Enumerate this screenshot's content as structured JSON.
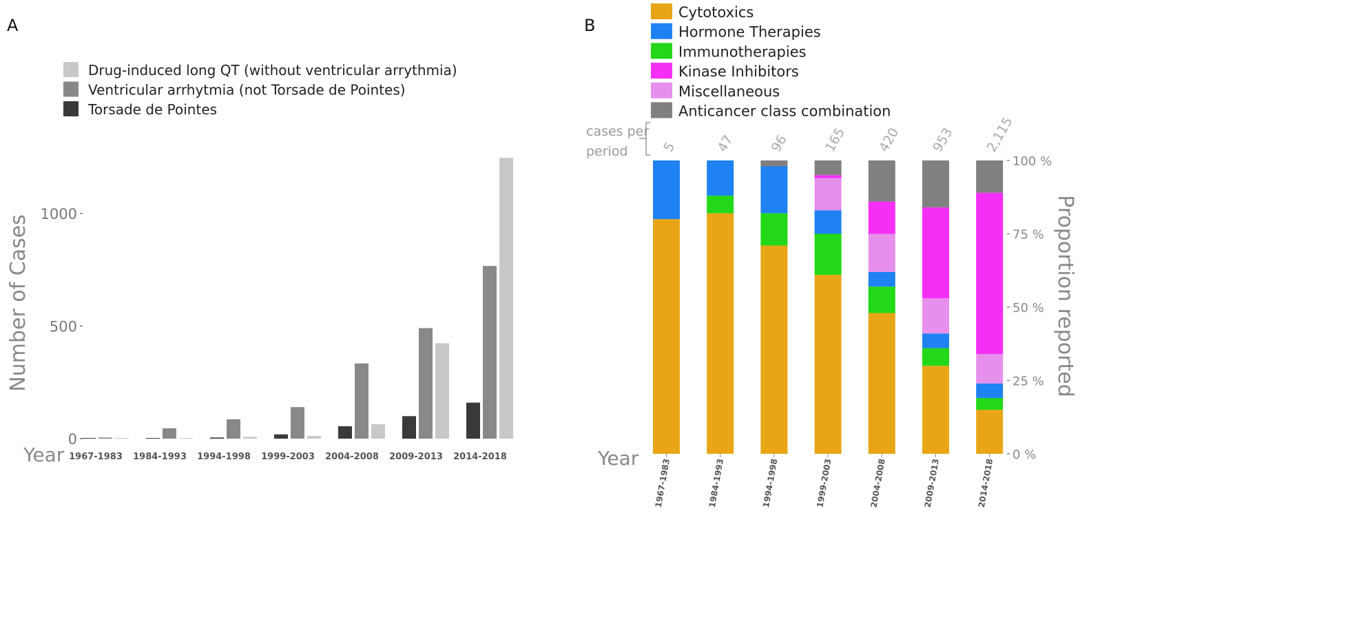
{
  "chart_data": [
    {
      "panel_label": "A",
      "type": "bar",
      "ylabel": "Number of Cases",
      "xlabel": "Year",
      "ylim": [
        0,
        1300
      ],
      "yticks": [
        0,
        500,
        1000
      ],
      "grid": false,
      "legend_placement": "top",
      "categories": [
        "1967-1983",
        "1984-1993",
        "1994-1998",
        "1999-2003",
        "2004-2008",
        "2009-2013",
        "2014-2018"
      ],
      "series": [
        {
          "name": "Torsade de Pointes",
          "color": "#3a3a3a",
          "values": [
            0,
            2,
            5,
            19,
            55,
            100,
            160
          ]
        },
        {
          "name": "Ventricular arrhytmia (not Torsade de Pointes)",
          "color": "#888888",
          "values": [
            5,
            46,
            86,
            140,
            334,
            491,
            767
          ]
        },
        {
          "name": "Drug-induced long QT (without ventricular arrythmia)",
          "color": "#c8c8c8",
          "values": [
            0,
            1,
            8,
            12,
            64,
            424,
            1247
          ]
        }
      ],
      "legend_order": [
        2,
        1,
        0
      ]
    },
    {
      "panel_label": "B",
      "type": "bar",
      "stacked": true,
      "ylabel": "Proportion reported",
      "xlabel": "Year",
      "ylim": [
        0,
        100
      ],
      "yticks": [
        "0 %",
        "25 %",
        "50 %",
        "75 %",
        "100 %"
      ],
      "grid": false,
      "legend_placement": "top",
      "cases_label": [
        "cases per",
        "period"
      ],
      "cases_per_period": [
        "5",
        "47",
        "96",
        "165",
        "420",
        "953",
        "2,115"
      ],
      "categories": [
        "1967-1983",
        "1984-1993",
        "1994-1998",
        "1999-2003",
        "2004-2008",
        "2009-2013",
        "2014-2018"
      ],
      "series": [
        {
          "name": "Cytotoxics",
          "color": "#e8a617",
          "values": [
            80,
            82,
            71,
            61,
            48,
            30,
            15
          ]
        },
        {
          "name": "Hormone Therapies",
          "color": "#1f82f2",
          "values": [
            20,
            12,
            16,
            8,
            5,
            5,
            5
          ]
        },
        {
          "name": "Immunotherapies",
          "color": "#22d818",
          "values": [
            0,
            6,
            11,
            14,
            9,
            6,
            4
          ]
        },
        {
          "name": "Kinase Inhibitors",
          "color": "#f52ff5",
          "values": [
            0,
            0,
            0,
            1,
            11,
            31,
            55
          ]
        },
        {
          "name": "Miscellaneous",
          "color": "#e68fec",
          "values": [
            0,
            0,
            0,
            11,
            13,
            12,
            10
          ]
        },
        {
          "name": "Anticancer class combination",
          "color": "#808080",
          "values": [
            0,
            0,
            2,
            5,
            14,
            16,
            11
          ]
        }
      ],
      "stack_order": [
        0,
        2,
        1,
        4,
        3,
        5
      ]
    }
  ]
}
